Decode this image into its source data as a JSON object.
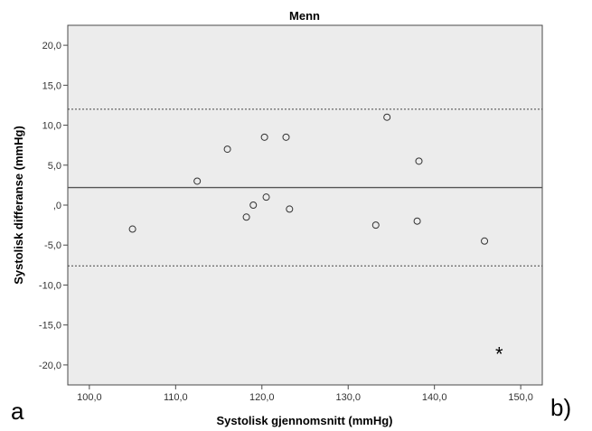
{
  "chart_data": {
    "type": "scatter",
    "title": "Menn",
    "xlabel": "Systolisk gjennomsnitt (mmHg)",
    "ylabel": "Systolisk differanse (mmHg)",
    "xlim": [
      97.5,
      152.5
    ],
    "ylim": [
      -22.5,
      22.5
    ],
    "x_ticks": [
      "100,0",
      "110,0",
      "120,0",
      "130,0",
      "140,0",
      "150,0"
    ],
    "x_tick_values": [
      100,
      110,
      120,
      130,
      140,
      150
    ],
    "y_ticks": [
      "20,0",
      "15,0",
      "10,0",
      "5,0",
      ",0",
      "-5,0",
      "-10,0",
      "-15,0",
      "-20,0"
    ],
    "y_tick_values": [
      20,
      15,
      10,
      5,
      0,
      -5,
      -10,
      -15,
      -20
    ],
    "grid": false,
    "points": [
      {
        "x": 105.0,
        "y": -3.0
      },
      {
        "x": 112.5,
        "y": 3.0
      },
      {
        "x": 116.0,
        "y": 7.0
      },
      {
        "x": 118.2,
        "y": -1.5
      },
      {
        "x": 119.0,
        "y": 0.0
      },
      {
        "x": 120.3,
        "y": 8.5
      },
      {
        "x": 120.5,
        "y": 1.0
      },
      {
        "x": 122.8,
        "y": 8.5
      },
      {
        "x": 123.2,
        "y": -0.5
      },
      {
        "x": 133.2,
        "y": -2.5
      },
      {
        "x": 134.5,
        "y": 11.0
      },
      {
        "x": 138.0,
        "y": -2.0
      },
      {
        "x": 138.2,
        "y": 5.5
      },
      {
        "x": 145.8,
        "y": -4.5
      }
    ],
    "mean_line": 2.2,
    "upper_limit": 12.0,
    "lower_limit": -7.6,
    "annotation": {
      "text": "*",
      "x": 147.5,
      "y": -18.5
    }
  },
  "panel_labels": {
    "left": "a",
    "right": "b)"
  }
}
